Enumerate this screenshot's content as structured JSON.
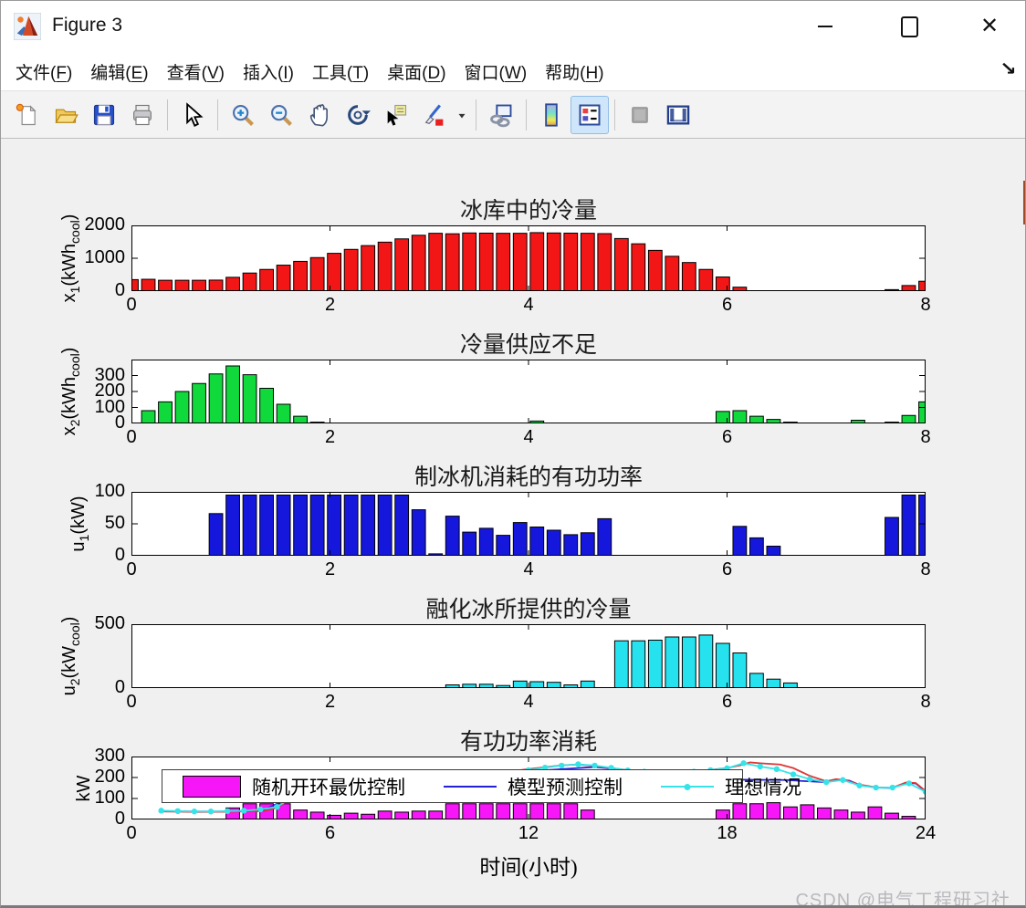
{
  "window": {
    "title": "Figure 3",
    "controls": [
      "minimize",
      "maximize",
      "close"
    ],
    "dock_icon": "dock-figure-arrow"
  },
  "menu": {
    "items": [
      {
        "label": "文件",
        "key": "F"
      },
      {
        "label": "编辑",
        "key": "E"
      },
      {
        "label": "查看",
        "key": "V"
      },
      {
        "label": "插入",
        "key": "I"
      },
      {
        "label": "工具",
        "key": "T"
      },
      {
        "label": "桌面",
        "key": "D"
      },
      {
        "label": "窗口",
        "key": "W"
      },
      {
        "label": "帮助",
        "key": "H"
      }
    ]
  },
  "toolbar": {
    "groups": [
      [
        "new-figure",
        "open-file",
        "save-figure",
        "print-figure"
      ],
      [
        "edit-plot-pointer"
      ],
      [
        "zoom-in",
        "zoom-out",
        "pan-hand",
        "rotate-3d",
        "data-cursor",
        "brush",
        "brush-dropdown"
      ],
      [
        "link-plot"
      ],
      [
        "insert-colorbar",
        "insert-legend"
      ],
      [
        "hide-plot-tools",
        "show-plot-tools-dock"
      ]
    ],
    "active": "insert-legend"
  },
  "figure": {
    "xlabel": "时间(小时)",
    "watermark": "CSDN @电气工程研习社"
  },
  "chart_data": [
    {
      "type": "bar",
      "title": "冰库中的冷量",
      "ylabel": "x_1(kWh_cool)",
      "color": "#f21616",
      "xlim": [
        0,
        8
      ],
      "ylim": [
        0,
        2000
      ],
      "xticks": [
        0,
        2,
        4,
        6,
        8
      ],
      "yticks": [
        0,
        1000,
        2000
      ],
      "values": [
        350,
        360,
        330,
        330,
        330,
        335,
        420,
        550,
        660,
        790,
        905,
        1020,
        1150,
        1270,
        1385,
        1490,
        1590,
        1700,
        1760,
        1745,
        1770,
        1765,
        1760,
        1760,
        1780,
        1770,
        1765,
        1760,
        1750,
        1600,
        1440,
        1240,
        1060,
        870,
        660,
        430,
        120,
        0,
        0,
        0,
        0,
        0,
        0,
        0,
        0,
        45,
        170,
        300
      ]
    },
    {
      "type": "bar",
      "title": "冷量供应不足",
      "ylabel": "x_2(kWh_cool)",
      "color": "#10d93c",
      "xlim": [
        0,
        8
      ],
      "ylim": [
        0,
        400
      ],
      "xticks": [
        0,
        2,
        4,
        6,
        8
      ],
      "yticks": [
        0,
        100,
        200,
        300
      ],
      "values": [
        0,
        80,
        135,
        200,
        250,
        310,
        360,
        305,
        220,
        120,
        45,
        8,
        0,
        0,
        0,
        0,
        0,
        0,
        0,
        0,
        0,
        0,
        0,
        0,
        15,
        0,
        0,
        0,
        0,
        0,
        0,
        0,
        0,
        0,
        0,
        75,
        80,
        45,
        25,
        8,
        0,
        0,
        0,
        20,
        0,
        8,
        50,
        135
      ]
    },
    {
      "type": "bar",
      "title": "制冰机消耗的有功功率",
      "ylabel": "u_1(kW)",
      "color": "#1518dc",
      "xlim": [
        0,
        8
      ],
      "ylim": [
        0,
        100
      ],
      "xticks": [
        0,
        2,
        4,
        6,
        8
      ],
      "yticks": [
        0,
        50,
        100
      ],
      "values": [
        0,
        0,
        0,
        0,
        0,
        66,
        95,
        95,
        95,
        95,
        95,
        95,
        95,
        95,
        95,
        95,
        95,
        72,
        3,
        62,
        37,
        43,
        32,
        52,
        45,
        40,
        33,
        36,
        58,
        0,
        0,
        0,
        0,
        0,
        0,
        0,
        46,
        28,
        15,
        0,
        0,
        0,
        0,
        0,
        0,
        60,
        95,
        95
      ]
    },
    {
      "type": "bar",
      "title": "融化冰所提供的冷量",
      "ylabel": "u_2(kW_cool)",
      "color": "#26e2ee",
      "xlim": [
        0,
        8
      ],
      "ylim": [
        0,
        500
      ],
      "xticks": [
        0,
        2,
        4,
        6,
        8
      ],
      "yticks": [
        0,
        500
      ],
      "values": [
        0,
        0,
        0,
        0,
        0,
        0,
        0,
        0,
        0,
        0,
        0,
        0,
        0,
        0,
        0,
        0,
        0,
        0,
        0,
        25,
        30,
        30,
        20,
        55,
        50,
        45,
        25,
        55,
        0,
        370,
        370,
        375,
        400,
        400,
        415,
        350,
        275,
        115,
        70,
        40,
        0,
        0,
        0,
        0,
        0,
        0,
        0,
        0
      ]
    },
    {
      "type": "bar+line",
      "title": "有功功率消耗",
      "ylabel": "kW",
      "color": "#f716f7",
      "xlim": [
        0,
        24
      ],
      "ylim": [
        0,
        300
      ],
      "xticks": [
        0,
        6,
        12,
        18,
        24
      ],
      "yticks": [
        0,
        100,
        200,
        300
      ],
      "values": [
        0,
        0,
        0,
        0,
        0,
        0,
        55,
        75,
        75,
        75,
        45,
        35,
        20,
        30,
        25,
        40,
        35,
        40,
        40,
        75,
        75,
        75,
        75,
        75,
        75,
        75,
        75,
        45,
        0,
        0,
        0,
        0,
        0,
        0,
        0,
        45,
        75,
        75,
        80,
        60,
        70,
        55,
        45,
        35,
        60,
        30,
        15,
        0
      ],
      "series": [
        {
          "name": "模型预测控制",
          "style": "line",
          "color": "#2222d8",
          "x": [
            0.9,
            2,
            3,
            4,
            5,
            6,
            8,
            10,
            12,
            14,
            16,
            18,
            19.8,
            20.3,
            21,
            21.4,
            21.7,
            22,
            22.5,
            23,
            23.4,
            23.7,
            24
          ],
          "y": [
            40,
            38,
            38,
            45,
            120,
            180,
            185,
            200,
            230,
            250,
            220,
            190,
            188,
            183,
            178,
            190,
            185,
            165,
            152,
            150,
            174,
            172,
            134
          ]
        },
        {
          "name": "red-line",
          "style": "line",
          "color": "#e03535",
          "x": [
            0.9,
            2,
            3,
            4,
            4.4,
            4.8,
            5.2,
            6,
            7,
            8,
            9,
            10,
            11,
            12,
            13,
            13.5,
            14,
            15,
            16,
            17,
            18,
            18.4,
            18.7,
            19,
            19.6,
            20,
            20.5,
            21,
            21.3,
            21.6,
            22,
            22.5,
            23,
            23.4,
            23.7,
            24
          ],
          "y": [
            38,
            36,
            37,
            40,
            55,
            100,
            150,
            185,
            190,
            185,
            195,
            205,
            220,
            240,
            258,
            262,
            255,
            235,
            222,
            228,
            245,
            258,
            272,
            268,
            262,
            245,
            208,
            182,
            192,
            186,
            166,
            153,
            151,
            176,
            174,
            136
          ]
        },
        {
          "name": "理想情况",
          "style": "line-marker",
          "color": "#35e3e8",
          "x": [
            0.9,
            1.4,
            1.9,
            2.4,
            2.9,
            3.4,
            3.9,
            4.4,
            4.9,
            5.4,
            5.9,
            6.4,
            7,
            7.5,
            8,
            8.5,
            9,
            9.5,
            10,
            10.5,
            11,
            11.5,
            12,
            12.5,
            13,
            13.5,
            14,
            14.5,
            15,
            15.5,
            16,
            16.5,
            17,
            17.5,
            18,
            18.5,
            19,
            19.5,
            20,
            20.5,
            21,
            21.5,
            22,
            22.5,
            23,
            23.5,
            24
          ],
          "y": [
            42,
            40,
            38,
            38,
            40,
            42,
            48,
            60,
            110,
            150,
            180,
            195,
            192,
            188,
            186,
            190,
            194,
            198,
            202,
            208,
            215,
            224,
            235,
            247,
            257,
            263,
            257,
            246,
            234,
            228,
            222,
            224,
            228,
            235,
            244,
            268,
            252,
            240,
            215,
            192,
            178,
            188,
            162,
            152,
            152,
            172,
            132
          ]
        }
      ],
      "legend": {
        "items": [
          {
            "label": "随机开环最优控制",
            "swatch": "patch",
            "color": "#f716f7"
          },
          {
            "label": "模型预测控制",
            "swatch": "line",
            "color": "#2222d8"
          },
          {
            "label": "理想情况",
            "swatch": "line-marker",
            "color": "#35e3e8"
          }
        ]
      }
    }
  ]
}
